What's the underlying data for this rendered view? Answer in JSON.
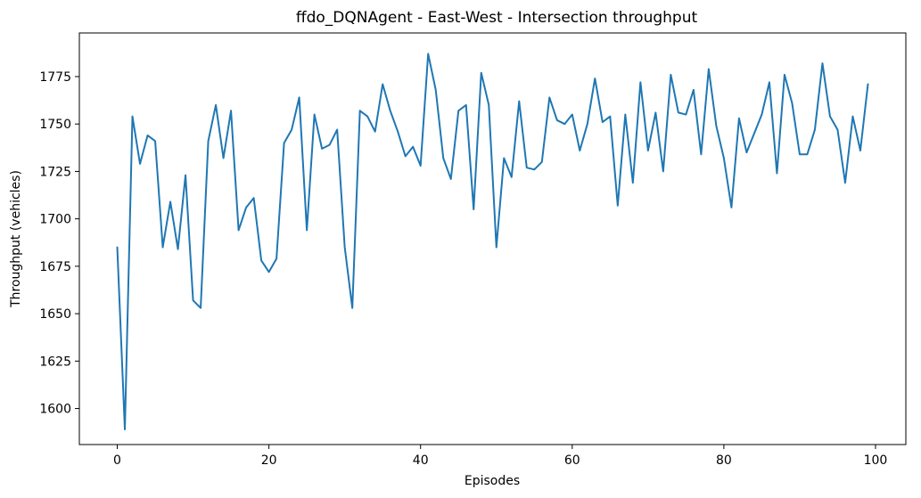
{
  "chart_data": {
    "type": "line",
    "title": "ffdo_DQNAgent - East-West - Intersection throughput",
    "xlabel": "Episodes",
    "ylabel": "Throughput (vehicles)",
    "xlim": [
      -5,
      104
    ],
    "ylim": [
      1581,
      1798
    ],
    "xticks": [
      0,
      20,
      40,
      60,
      80,
      100
    ],
    "yticks": [
      1600,
      1625,
      1650,
      1675,
      1700,
      1725,
      1750,
      1775
    ],
    "grid": false,
    "series": [
      {
        "color": "#1f77b4",
        "x": [
          0,
          1,
          2,
          3,
          4,
          5,
          6,
          7,
          8,
          9,
          10,
          11,
          12,
          13,
          14,
          15,
          16,
          17,
          18,
          19,
          20,
          21,
          22,
          23,
          24,
          25,
          26,
          27,
          28,
          29,
          30,
          31,
          32,
          33,
          34,
          35,
          36,
          37,
          38,
          39,
          40,
          41,
          42,
          43,
          44,
          45,
          46,
          47,
          48,
          49,
          50,
          51,
          52,
          53,
          54,
          55,
          56,
          57,
          58,
          59,
          60,
          61,
          62,
          63,
          64,
          65,
          66,
          67,
          68,
          69,
          70,
          71,
          72,
          73,
          74,
          75,
          76,
          77,
          78,
          79,
          80,
          81,
          82,
          83,
          84,
          85,
          86,
          87,
          88,
          89,
          90,
          91,
          92,
          93,
          94,
          95,
          96,
          97,
          98,
          99
        ],
        "y": [
          1685,
          1589,
          1754,
          1729,
          1744,
          1741,
          1685,
          1709,
          1684,
          1723,
          1657,
          1653,
          1741,
          1760,
          1732,
          1757,
          1694,
          1706,
          1711,
          1678,
          1672,
          1679,
          1740,
          1747,
          1764,
          1694,
          1755,
          1737,
          1739,
          1747,
          1685,
          1653,
          1757,
          1754,
          1746,
          1771,
          1757,
          1746,
          1733,
          1738,
          1728,
          1787,
          1768,
          1732,
          1721,
          1757,
          1760,
          1705,
          1777,
          1760,
          1685,
          1732,
          1722,
          1762,
          1727,
          1726,
          1730,
          1764,
          1752,
          1750,
          1755,
          1736,
          1750,
          1774,
          1751,
          1754,
          1707,
          1755,
          1719,
          1772,
          1736,
          1756,
          1725,
          1776,
          1756,
          1755,
          1768,
          1734,
          1779,
          1749,
          1732,
          1706,
          1753,
          1735,
          1745,
          1755,
          1772,
          1724,
          1776,
          1761,
          1734,
          1734,
          1747,
          1782,
          1754,
          1747,
          1719,
          1754,
          1736,
          1771
        ]
      }
    ]
  }
}
